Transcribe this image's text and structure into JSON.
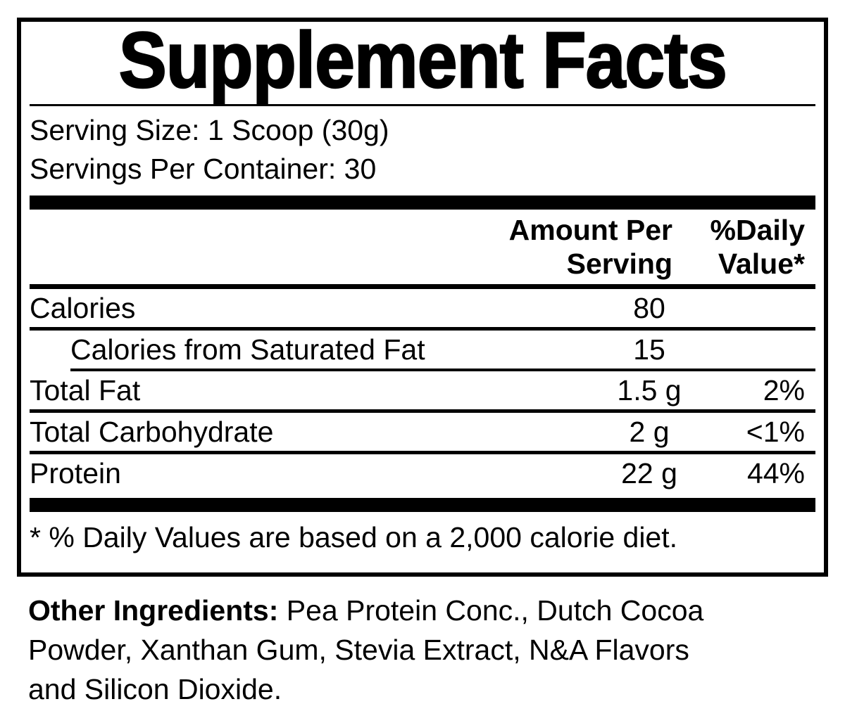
{
  "colors": {
    "ink": "#000000",
    "paper": "#ffffff"
  },
  "title": "Supplement Facts",
  "serving_info": {
    "serving_size": "Serving Size: 1 Scoop (30g)",
    "servings_per_container": "Servings Per Container: 30"
  },
  "header": {
    "amount_line1": "Amount Per",
    "amount_line2": "Serving",
    "dv_line1": "%Daily",
    "dv_line2": "Value*"
  },
  "rows": [
    {
      "label": "Calories",
      "amount": "80",
      "daily_value": ""
    },
    {
      "label": "Calories from Saturated Fat",
      "amount": "15",
      "daily_value": ""
    },
    {
      "label": "Total Fat",
      "amount": "1.5 g",
      "daily_value": "2%"
    },
    {
      "label": "Total Carbohydrate",
      "amount": "2 g",
      "daily_value": "<1%"
    },
    {
      "label": "Protein",
      "amount": "22 g",
      "daily_value": "44%"
    }
  ],
  "footnote": "* % Daily Values are based on a 2,000 calorie diet.",
  "other_ingredients": {
    "label": "Other Ingredients:",
    "line1_rest": " Pea Protein Conc., Dutch Cocoa",
    "line2": "Powder, Xanthan Gum, Stevia Extract, N&A Flavors",
    "line3": "and Silicon Dioxide."
  }
}
